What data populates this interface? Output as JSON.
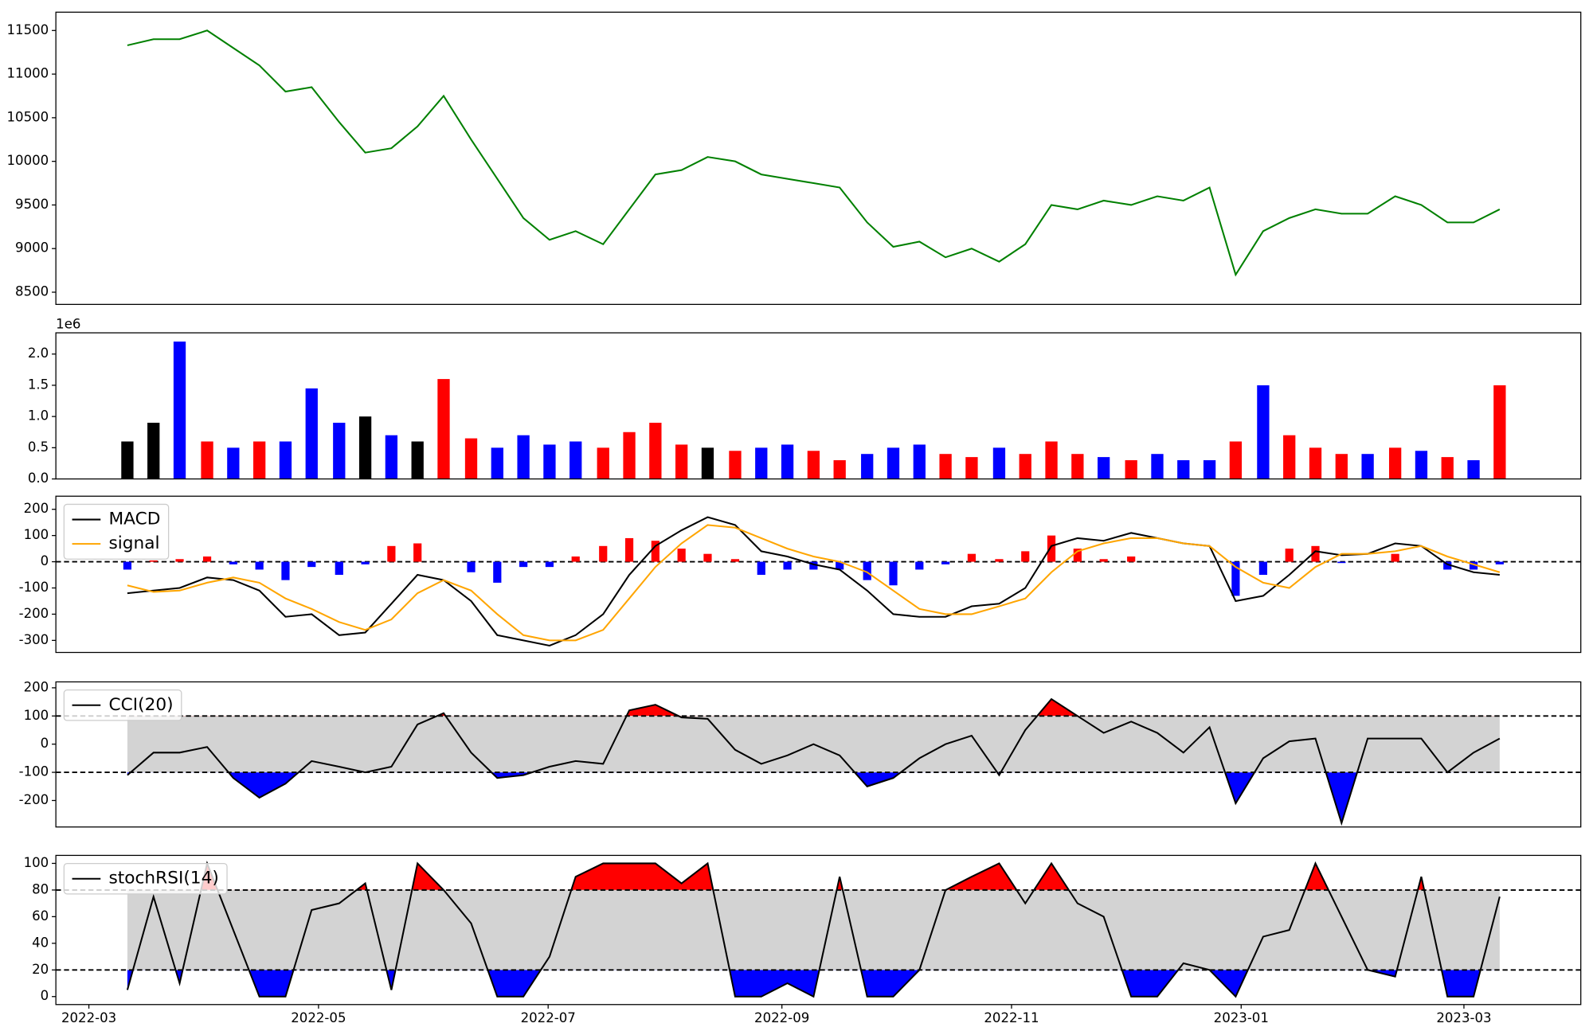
{
  "chart_data": [
    {
      "type": "line",
      "x": [
        2022.19,
        2022.209,
        2022.228,
        2022.248,
        2022.267,
        2022.286,
        2022.305,
        2022.324,
        2022.344,
        2022.363,
        2022.382,
        2022.401,
        2022.42,
        2022.44,
        2022.459,
        2022.478,
        2022.497,
        2022.516,
        2022.536,
        2022.555,
        2022.574,
        2022.593,
        2022.612,
        2022.632,
        2022.651,
        2022.67,
        2022.689,
        2022.708,
        2022.728,
        2022.747,
        2022.766,
        2022.785,
        2022.804,
        2022.824,
        2022.843,
        2022.862,
        2022.881,
        2022.9,
        2022.92,
        2022.939,
        2022.958,
        2022.977,
        2022.996,
        2023.016,
        2023.035,
        2023.054,
        2023.073,
        2023.092,
        2023.112,
        2023.131,
        2023.15,
        2023.169,
        2023.188
      ],
      "values": [
        11330,
        11400,
        11400,
        11500,
        11300,
        11100,
        10800,
        10850,
        10450,
        10100,
        10150,
        10400,
        10750,
        10250,
        9800,
        9350,
        9100,
        9200,
        9050,
        9450,
        9850,
        9900,
        10050,
        10000,
        9850,
        9800,
        9750,
        9700,
        9300,
        9020,
        9080,
        8900,
        9000,
        8850,
        9050,
        9500,
        9450,
        9550,
        9500,
        9600,
        9550,
        9700,
        8700,
        9200,
        9350,
        9450,
        9400,
        9400,
        9600,
        9500,
        9300,
        9300,
        9450
      ],
      "color": "#008000",
      "xlim": [
        2022.138,
        2023.247
      ],
      "ylim": [
        8360,
        11710
      ],
      "yticks": [
        8500,
        9000,
        9500,
        10000,
        10500,
        11000,
        11500
      ]
    },
    {
      "type": "bar",
      "x": [
        2022.19,
        2022.209,
        2022.228,
        2022.248,
        2022.267,
        2022.286,
        2022.305,
        2022.324,
        2022.344,
        2022.363,
        2022.382,
        2022.401,
        2022.42,
        2022.44,
        2022.459,
        2022.478,
        2022.497,
        2022.516,
        2022.536,
        2022.555,
        2022.574,
        2022.593,
        2022.612,
        2022.632,
        2022.651,
        2022.67,
        2022.689,
        2022.708,
        2022.728,
        2022.747,
        2022.766,
        2022.785,
        2022.804,
        2022.824,
        2022.843,
        2022.862,
        2022.881,
        2022.9,
        2022.92,
        2022.939,
        2022.958,
        2022.977,
        2022.996,
        2023.016,
        2023.035,
        2023.054,
        2023.073,
        2023.092,
        2023.112,
        2023.131,
        2023.15,
        2023.169,
        2023.188
      ],
      "values": [
        0.6,
        0.9,
        2.2,
        0.6,
        0.5,
        0.6,
        0.6,
        1.45,
        0.9,
        1.0,
        0.7,
        0.6,
        1.6,
        0.65,
        0.5,
        0.7,
        0.55,
        0.6,
        0.5,
        0.75,
        0.9,
        0.55,
        0.5,
        0.45,
        0.5,
        0.55,
        0.45,
        0.3,
        0.4,
        0.5,
        0.55,
        0.4,
        0.35,
        0.5,
        0.4,
        0.6,
        0.4,
        0.35,
        0.3,
        0.4,
        0.3,
        0.3,
        0.6,
        1.5,
        0.7,
        0.5,
        0.4,
        0.4,
        0.5,
        0.45,
        0.35,
        0.3,
        1.5
      ],
      "colors": [
        "#000000",
        "#000000",
        "#0000ff",
        "#ff0000",
        "#0000ff",
        "#ff0000",
        "#0000ff",
        "#0000ff",
        "#0000ff",
        "#000000",
        "#0000ff",
        "#000000",
        "#ff0000",
        "#ff0000",
        "#0000ff",
        "#0000ff",
        "#0000ff",
        "#0000ff",
        "#ff0000",
        "#ff0000",
        "#ff0000",
        "#ff0000",
        "#000000",
        "#ff0000",
        "#0000ff",
        "#0000ff",
        "#ff0000",
        "#ff0000",
        "#0000ff",
        "#0000ff",
        "#0000ff",
        "#ff0000",
        "#ff0000",
        "#0000ff",
        "#ff0000",
        "#ff0000",
        "#ff0000",
        "#0000ff",
        "#ff0000",
        "#0000ff",
        "#0000ff",
        "#0000ff",
        "#ff0000",
        "#0000ff",
        "#ff0000",
        "#ff0000",
        "#ff0000",
        "#0000ff",
        "#ff0000",
        "#0000ff",
        "#ff0000",
        "#0000ff",
        "#ff0000"
      ],
      "xlim": [
        2022.138,
        2023.247
      ],
      "ylim": [
        0,
        2.34
      ],
      "yticks": [
        {
          "value": 0,
          "label": "0.0"
        },
        0.5,
        {
          "value": 1,
          "label": "1.0"
        },
        1.5,
        {
          "value": 2,
          "label": "2.0"
        }
      ],
      "offset_text": "1e6"
    },
    {
      "type": "line",
      "x": [
        2022.19,
        2022.209,
        2022.228,
        2022.248,
        2022.267,
        2022.286,
        2022.305,
        2022.324,
        2022.344,
        2022.363,
        2022.382,
        2022.401,
        2022.42,
        2022.44,
        2022.459,
        2022.478,
        2022.497,
        2022.516,
        2022.536,
        2022.555,
        2022.574,
        2022.593,
        2022.612,
        2022.632,
        2022.651,
        2022.67,
        2022.689,
        2022.708,
        2022.728,
        2022.747,
        2022.766,
        2022.785,
        2022.804,
        2022.824,
        2022.843,
        2022.862,
        2022.881,
        2022.9,
        2022.92,
        2022.939,
        2022.958,
        2022.977,
        2022.996,
        2023.016,
        2023.035,
        2023.054,
        2023.073,
        2023.092,
        2023.112,
        2023.131,
        2023.15,
        2023.169,
        2023.188
      ],
      "series": [
        {
          "name": "MACD",
          "color": "#000000",
          "values": [
            -120,
            -110,
            -100,
            -60,
            -70,
            -110,
            -210,
            -200,
            -280,
            -270,
            -160,
            -50,
            -70,
            -150,
            -280,
            -300,
            -320,
            -280,
            -200,
            -50,
            60,
            120,
            170,
            140,
            40,
            20,
            -10,
            -30,
            -110,
            -200,
            -210,
            -210,
            -170,
            -160,
            -100,
            60,
            90,
            80,
            110,
            90,
            70,
            60,
            -150,
            -130,
            -50,
            40,
            25,
            30,
            70,
            60,
            -10,
            -40,
            -50
          ]
        },
        {
          "name": "signal",
          "color": "#ffa500",
          "values": [
            -90,
            -115,
            -110,
            -80,
            -60,
            -80,
            -140,
            -180,
            -230,
            -260,
            -220,
            -120,
            -70,
            -110,
            -200,
            -280,
            -300,
            -300,
            -260,
            -140,
            -20,
            70,
            140,
            130,
            90,
            50,
            20,
            0,
            -40,
            -110,
            -180,
            -200,
            -200,
            -170,
            -140,
            -40,
            40,
            70,
            90,
            90,
            70,
            60,
            -20,
            -80,
            -100,
            -20,
            30,
            30,
            40,
            60,
            20,
            -10,
            -40
          ]
        }
      ],
      "histogram": [
        -30,
        5,
        10,
        20,
        -10,
        -30,
        -70,
        -20,
        -50,
        -10,
        60,
        70,
        0,
        -40,
        -80,
        -20,
        -20,
        20,
        60,
        90,
        80,
        50,
        30,
        10,
        -50,
        -30,
        -30,
        -30,
        -70,
        -90,
        -30,
        -10,
        30,
        10,
        40,
        100,
        50,
        10,
        20,
        0,
        0,
        0,
        -130,
        -50,
        50,
        60,
        -5,
        0,
        30,
        0,
        -30,
        -30,
        -10
      ],
      "histogram_colors": {
        "positive": "#ff0000",
        "negative": "#0000ff"
      },
      "reference_line": 0,
      "legend": "upper left",
      "xlim": [
        2022.138,
        2023.247
      ],
      "ylim": [
        -346,
        250
      ],
      "yticks": [
        -300,
        -200,
        -100,
        0,
        100,
        200
      ]
    },
    {
      "type": "line",
      "x": [
        2022.19,
        2022.209,
        2022.228,
        2022.248,
        2022.267,
        2022.286,
        2022.305,
        2022.324,
        2022.344,
        2022.363,
        2022.382,
        2022.401,
        2022.42,
        2022.44,
        2022.459,
        2022.478,
        2022.497,
        2022.516,
        2022.536,
        2022.555,
        2022.574,
        2022.593,
        2022.612,
        2022.632,
        2022.651,
        2022.67,
        2022.689,
        2022.708,
        2022.728,
        2022.747,
        2022.766,
        2022.785,
        2022.804,
        2022.824,
        2022.843,
        2022.862,
        2022.881,
        2022.9,
        2022.92,
        2022.939,
        2022.958,
        2022.977,
        2022.996,
        2023.016,
        2023.035,
        2023.054,
        2023.073,
        2023.092,
        2023.112,
        2023.131,
        2023.15,
        2023.169,
        2023.188
      ],
      "series": [
        {
          "name": "CCI(20)",
          "color": "#000000",
          "values": [
            -110,
            -30,
            -30,
            -10,
            -120,
            -190,
            -140,
            -60,
            -80,
            -100,
            -80,
            70,
            110,
            -30,
            -120,
            -110,
            -80,
            -60,
            -70,
            120,
            140,
            95,
            90,
            -20,
            -70,
            -40,
            0,
            -40,
            -150,
            -120,
            -50,
            0,
            30,
            -110,
            50,
            160,
            100,
            40,
            80,
            40,
            -30,
            60,
            -210,
            -50,
            10,
            20,
            -280,
            20,
            20,
            20,
            -100,
            -30,
            20
          ]
        }
      ],
      "levels": [
        -100,
        100
      ],
      "band_color": "#d3d3d3",
      "upper_color": "#ff0000",
      "lower_color": "#0000ff",
      "legend": "upper left",
      "xlim": [
        2022.138,
        2023.247
      ],
      "ylim": [
        -294,
        221
      ],
      "yticks": [
        -200,
        -100,
        0,
        100,
        200
      ]
    },
    {
      "type": "line",
      "x": [
        2022.19,
        2022.209,
        2022.228,
        2022.248,
        2022.267,
        2022.286,
        2022.305,
        2022.324,
        2022.344,
        2022.363,
        2022.382,
        2022.401,
        2022.42,
        2022.44,
        2022.459,
        2022.478,
        2022.497,
        2022.516,
        2022.536,
        2022.555,
        2022.574,
        2022.593,
        2022.612,
        2022.632,
        2022.651,
        2022.67,
        2022.689,
        2022.708,
        2022.728,
        2022.747,
        2022.766,
        2022.785,
        2022.804,
        2022.824,
        2022.843,
        2022.862,
        2022.881,
        2022.9,
        2022.92,
        2022.939,
        2022.958,
        2022.977,
        2022.996,
        2023.016,
        2023.035,
        2023.054,
        2023.073,
        2023.092,
        2023.112,
        2023.131,
        2023.15,
        2023.169,
        2023.188
      ],
      "series": [
        {
          "name": "stochRSI(14)",
          "color": "#000000",
          "values": [
            5,
            75,
            10,
            100,
            50,
            0,
            0,
            65,
            70,
            85,
            5,
            100,
            80,
            55,
            0,
            0,
            30,
            90,
            100,
            100,
            100,
            85,
            100,
            0,
            0,
            10,
            0,
            90,
            0,
            0,
            20,
            80,
            90,
            100,
            70,
            100,
            70,
            60,
            0,
            0,
            25,
            20,
            0,
            45,
            50,
            100,
            60,
            20,
            15,
            90,
            0,
            0,
            75
          ]
        }
      ],
      "levels": [
        20,
        80
      ],
      "band_color": "#d3d3d3",
      "upper_color": "#ff0000",
      "lower_color": "#0000ff",
      "legend": "upper left",
      "xlim": [
        2022.138,
        2023.247
      ],
      "ylim": [
        -6,
        106
      ],
      "yticks": [
        0,
        20,
        40,
        60,
        80,
        100
      ],
      "xticks": [
        {
          "value": 2022.162,
          "label": "2022-03"
        },
        {
          "value": 2022.329,
          "label": "2022-05"
        },
        {
          "value": 2022.496,
          "label": "2022-07"
        },
        {
          "value": 2022.666,
          "label": "2022-09"
        },
        {
          "value": 2022.833,
          "label": "2022-11"
        },
        {
          "value": 2023.0,
          "label": "2023-01"
        },
        {
          "value": 2023.162,
          "label": "2023-03"
        }
      ]
    }
  ]
}
